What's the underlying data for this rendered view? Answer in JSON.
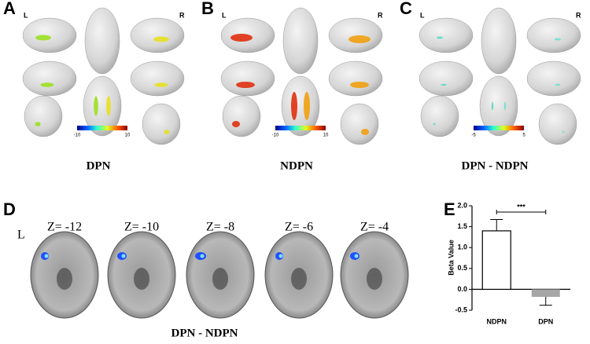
{
  "panels": {
    "A": {
      "letter": "A",
      "left": "L",
      "right": "R",
      "colorbar": [
        -10,
        10
      ],
      "caption": "DPN"
    },
    "B": {
      "letter": "B",
      "left": "L",
      "right": "R",
      "colorbar": [
        -10,
        10
      ],
      "caption": "NDPN"
    },
    "C": {
      "letter": "C",
      "left": "L",
      "right": "R",
      "colorbar": [
        -5,
        5
      ],
      "caption": "DPN - NDPN"
    },
    "D": {
      "letter": "D",
      "side": "L",
      "slices": [
        "Z= -12",
        "Z= -10",
        "Z= -8",
        "Z= -6",
        "Z= -4"
      ],
      "caption": "DPN - NDPN"
    }
  },
  "chart_data": {
    "type": "bar",
    "label": "E",
    "y_label": "Beta Value",
    "categories": [
      "NDPN",
      "DPN"
    ],
    "values": [
      1.4,
      -0.18
    ],
    "errors": [
      0.27,
      0.2
    ],
    "colors": [
      "#ffffff",
      "#a6a6a6"
    ],
    "annotation": "***",
    "ylim": [
      -0.5,
      2.0
    ],
    "yticks": [
      -0.5,
      {
        "value": 0,
        "label": "0.0"
      },
      0.5,
      {
        "value": 1,
        "label": "1.0"
      },
      1.5,
      {
        "value": 2,
        "label": "2.0"
      }
    ]
  }
}
